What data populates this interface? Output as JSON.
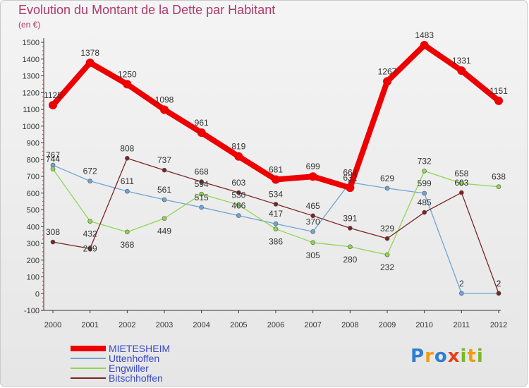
{
  "chart_data": {
    "type": "line",
    "title": "Evolution du Montant de la Dette par Habitant",
    "subtitle": "(en €)",
    "xlabel": "",
    "ylabel": "",
    "categories": [
      "2000",
      "2001",
      "2002",
      "2003",
      "2004",
      "2005",
      "2006",
      "2007",
      "2008",
      "2009",
      "2010",
      "2011",
      "2012"
    ],
    "ylim": [
      -100,
      1500
    ],
    "yticks": [
      -100,
      0,
      100,
      200,
      300,
      400,
      500,
      600,
      700,
      800,
      900,
      1000,
      1100,
      1200,
      1300,
      1400,
      1500
    ],
    "grid": false,
    "legend_position": "bottom-left",
    "series": [
      {
        "name": "MIETESHEIM",
        "color": "#ee0000",
        "values": [
          1125,
          1378,
          1250,
          1098,
          961,
          819,
          681,
          699,
          632,
          1267,
          1483,
          1331,
          1151
        ]
      },
      {
        "name": "Uttenhoffen",
        "color": "#6ea4d6",
        "values": [
          767,
          672,
          611,
          561,
          515,
          466,
          417,
          370,
          664,
          629,
          599,
          2,
          2
        ]
      },
      {
        "name": "Engwiller",
        "color": "#8fd651",
        "values": [
          744,
          432,
          368,
          449,
          594,
          530,
          386,
          305,
          280,
          232,
          732,
          658,
          638
        ]
      },
      {
        "name": "Bitschhoffen",
        "color": "#7a2424",
        "values": [
          308,
          269,
          808,
          737,
          668,
          603,
          534,
          465,
          391,
          329,
          485,
          603,
          2
        ]
      }
    ]
  },
  "logo": {
    "letters": [
      {
        "char": "P",
        "color": "#2d7fd0"
      },
      {
        "char": "r",
        "color": "#f39c12"
      },
      {
        "char": "o",
        "color": "#2d7fd0"
      },
      {
        "char": "x",
        "color": "#e8401c"
      },
      {
        "char": "i",
        "color": "#79b928"
      },
      {
        "char": "t",
        "color": "#f39c12"
      },
      {
        "char": "i",
        "color": "#79b928"
      }
    ]
  }
}
